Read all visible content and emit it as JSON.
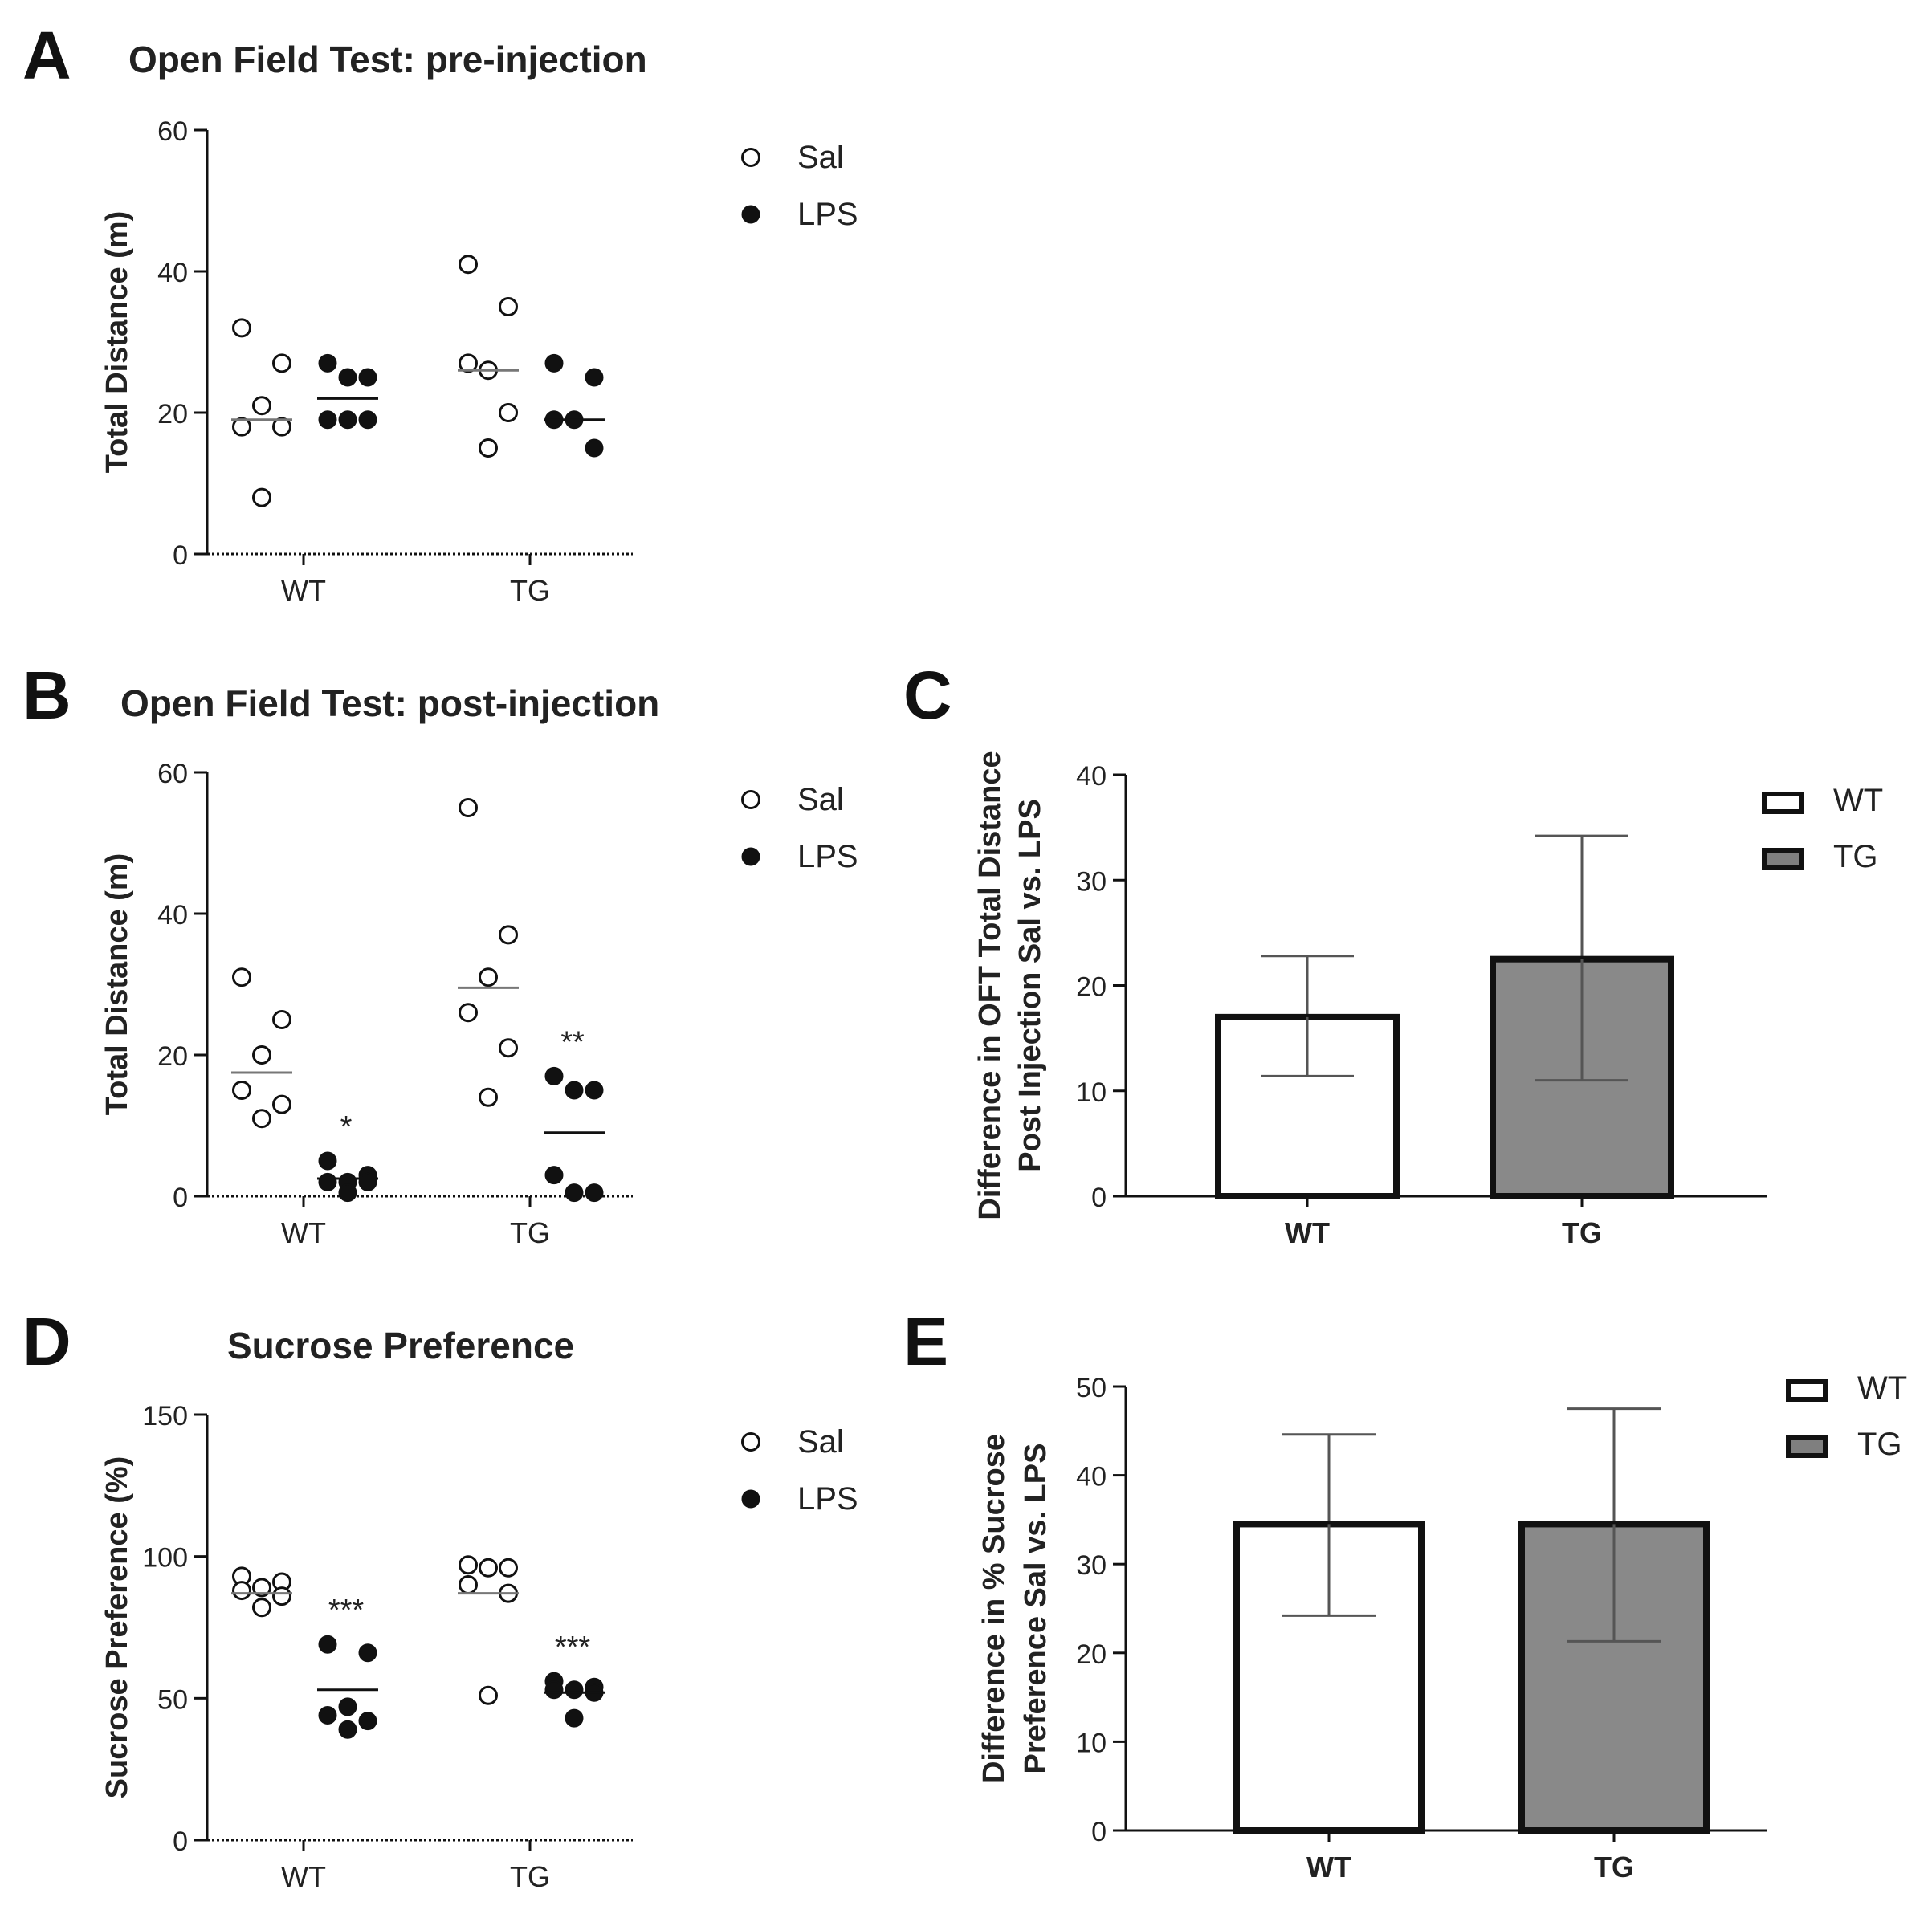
{
  "panels": {
    "A": {
      "letter": "A"
    },
    "B": {
      "letter": "B"
    },
    "C": {
      "letter": "C"
    },
    "D": {
      "letter": "D"
    },
    "E": {
      "letter": "E"
    }
  },
  "colors": {
    "ink": "#111111",
    "tg_fill": "#7f7f7f",
    "errbar": "#555555",
    "wt_fill": "#ffffff"
  },
  "chart_data": [
    {
      "id": "A",
      "type": "scatter",
      "title": "Open Field Test: pre-injection",
      "xlabel": "",
      "ylabel": "Total Distance (m)",
      "ylim": [
        0,
        60
      ],
      "yticks": [
        0,
        20,
        40,
        60
      ],
      "categories": [
        "WT",
        "TG"
      ],
      "legend": [
        "Sal",
        "LPS"
      ],
      "series": [
        {
          "name": "Sal",
          "group": "WT",
          "values": [
            32,
            27,
            21,
            18,
            18,
            8
          ],
          "mean": 19
        },
        {
          "name": "LPS",
          "group": "WT",
          "values": [
            27,
            25,
            25,
            19,
            19,
            19
          ],
          "mean": 22
        },
        {
          "name": "Sal",
          "group": "TG",
          "values": [
            41,
            35,
            26,
            27,
            20,
            15
          ],
          "mean": 26
        },
        {
          "name": "LPS",
          "group": "TG",
          "values": [
            27,
            25,
            19,
            19,
            15
          ],
          "mean": 19
        }
      ],
      "annotations": []
    },
    {
      "id": "B",
      "type": "scatter",
      "title": "Open Field Test: post-injection",
      "xlabel": "",
      "ylabel": "Total Distance (m)",
      "ylim": [
        0,
        60
      ],
      "yticks": [
        0,
        20,
        40,
        60
      ],
      "categories": [
        "WT",
        "TG"
      ],
      "legend": [
        "Sal",
        "LPS"
      ],
      "series": [
        {
          "name": "Sal",
          "group": "WT",
          "values": [
            31,
            25,
            20,
            15,
            13,
            11
          ],
          "mean": 17.5
        },
        {
          "name": "LPS",
          "group": "WT",
          "values": [
            5,
            3,
            2,
            2,
            2,
            0.5
          ],
          "mean": 2.5
        },
        {
          "name": "Sal",
          "group": "TG",
          "values": [
            55,
            37,
            31,
            26,
            21,
            14
          ],
          "mean": 29.5
        },
        {
          "name": "LPS",
          "group": "TG",
          "values": [
            17,
            15,
            15,
            3,
            0.5,
            0.5
          ],
          "mean": 9
        }
      ],
      "annotations": [
        {
          "group": "WT",
          "text": "*"
        },
        {
          "group": "TG",
          "text": "**"
        }
      ]
    },
    {
      "id": "C",
      "type": "bar",
      "title": "",
      "xlabel": "",
      "ylabel": "Difference in OFT Total Distance Post Injection Sal vs. LPS",
      "ylabel_lines": [
        "Difference in OFT Total Distance",
        "Post Injection Sal vs.  LPS"
      ],
      "ylim": [
        0,
        40
      ],
      "yticks": [
        0,
        10,
        20,
        30,
        40
      ],
      "categories": [
        "WT",
        "TG"
      ],
      "legend": [
        "WT",
        "TG"
      ],
      "values": [
        17,
        22.5
      ],
      "err_low": [
        11.4,
        11
      ],
      "err_high": [
        22.8,
        34.2
      ]
    },
    {
      "id": "D",
      "type": "scatter",
      "title": "Sucrose Preference",
      "xlabel": "",
      "ylabel": "Sucrose Preference (%)",
      "ylim": [
        0,
        150
      ],
      "yticks": [
        0,
        50,
        100,
        150
      ],
      "categories": [
        "WT",
        "TG"
      ],
      "legend": [
        "Sal",
        "LPS"
      ],
      "series": [
        {
          "name": "Sal",
          "group": "WT",
          "values": [
            93,
            91,
            89,
            88,
            86,
            82
          ],
          "mean": 87
        },
        {
          "name": "LPS",
          "group": "WT",
          "values": [
            69,
            66,
            47,
            44,
            42,
            39
          ],
          "mean": 53
        },
        {
          "name": "Sal",
          "group": "TG",
          "values": [
            97,
            96,
            96,
            90,
            87,
            51
          ],
          "mean": 87
        },
        {
          "name": "LPS",
          "group": "TG",
          "values": [
            56,
            54,
            53,
            53,
            52,
            43
          ],
          "mean": 52
        }
      ],
      "annotations": [
        {
          "group": "WT",
          "text": "***"
        },
        {
          "group": "TG",
          "text": "***"
        }
      ]
    },
    {
      "id": "E",
      "type": "bar",
      "title": "",
      "xlabel": "",
      "ylabel": "Difference in % Sucrose Preference Sal vs. LPS",
      "ylabel_lines": [
        "Difference in %  Sucrose",
        "Preference Sal vs.  LPS"
      ],
      "ylim": [
        0,
        50
      ],
      "yticks": [
        0,
        10,
        20,
        30,
        40,
        50
      ],
      "categories": [
        "WT",
        "TG"
      ],
      "legend": [
        "WT",
        "TG"
      ],
      "values": [
        34.5,
        34.5
      ],
      "err_low": [
        24.2,
        21.3
      ],
      "err_high": [
        44.6,
        47.5
      ]
    }
  ]
}
